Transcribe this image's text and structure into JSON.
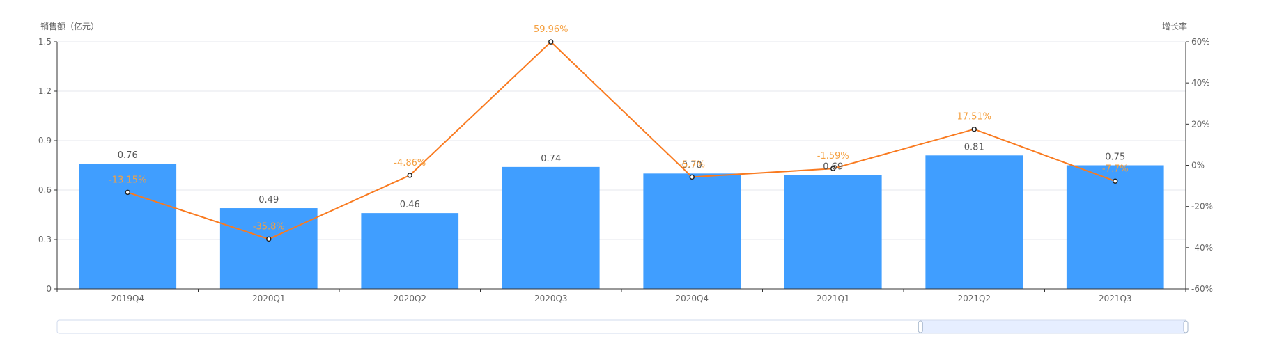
{
  "colors": {
    "bar": "#409EFF",
    "line": "#F97A1F",
    "rate_label": "#F5A040",
    "grid": "#E4E7ED",
    "axis": "#333333",
    "zoom_border": "#D2DBEE",
    "zoom_fill": "#E6EEFF"
  },
  "chart_data": {
    "type": "bar",
    "categories": [
      "2019Q4",
      "2020Q1",
      "2020Q2",
      "2020Q3",
      "2020Q4",
      "2021Q1",
      "2021Q2",
      "2021Q3"
    ],
    "ylabel": "销售额（亿元）",
    "y2label": "增长率",
    "ylim": [
      0,
      1.5
    ],
    "y2lim": [
      -60,
      60
    ],
    "y_ticks": [
      "0",
      "0.3",
      "0.6",
      "0.9",
      "1.2",
      "1.5"
    ],
    "y2_ticks": [
      "-60%",
      "-40%",
      "-20%",
      "0%",
      "20%",
      "40%",
      "60%"
    ],
    "grid": true,
    "series": [
      {
        "type": "bar",
        "axis": "left",
        "values": [
          0.76,
          0.49,
          0.46,
          0.74,
          0.7,
          0.69,
          0.81,
          0.75
        ],
        "labels": [
          "0.76",
          "0.49",
          "0.46",
          "0.74",
          "0.70",
          "0.69",
          "0.81",
          "0.75"
        ]
      },
      {
        "type": "line",
        "axis": "right",
        "values": [
          -13.15,
          -35.8,
          -4.86,
          59.96,
          -5.7,
          -1.59,
          17.51,
          -7.7
        ],
        "labels": [
          "-13.15%",
          "-35.8%",
          "-4.86%",
          "59.96%",
          "-5.7%",
          "-1.59%",
          "17.51%",
          "-7.7%"
        ]
      }
    ],
    "data_zoom": {
      "start": 0.765,
      "end": 1.0
    }
  }
}
